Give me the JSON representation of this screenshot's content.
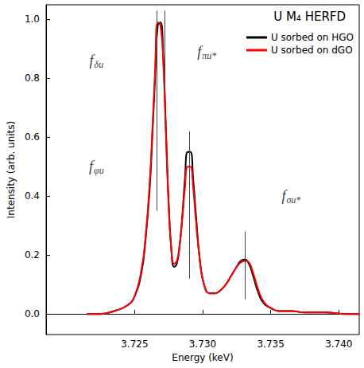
{
  "chart_data": {
    "type": "line",
    "title": "U M₄ HERFD",
    "x_label": "Energy (keV)",
    "y_label": "Intensity (arb. units)",
    "x": [
      3.7215,
      3.7225,
      3.7235,
      3.7245,
      3.725,
      3.7255,
      3.7258,
      3.7261,
      3.7263,
      3.7265,
      3.7267,
      3.7269,
      3.7271,
      3.7273,
      3.7275,
      3.7277,
      3.7279,
      3.7281,
      3.7283,
      3.7285,
      3.7287,
      3.7289,
      3.7291,
      3.7293,
      3.7295,
      3.7298,
      3.7301,
      3.7305,
      3.7309,
      3.7313,
      3.7317,
      3.7321,
      3.7325,
      3.7328,
      3.7331,
      3.7334,
      3.7337,
      3.7341,
      3.7345,
      3.735,
      3.7356,
      3.7365,
      3.7375,
      3.739,
      3.7405,
      3.7415
    ],
    "series": [
      {
        "name": "U sorbed on HGO",
        "color": "#000000",
        "values": [
          0,
          0,
          0.01,
          0.03,
          0.06,
          0.14,
          0.25,
          0.42,
          0.6,
          0.8,
          0.98,
          0.99,
          0.88,
          0.63,
          0.38,
          0.22,
          0.16,
          0.17,
          0.23,
          0.33,
          0.46,
          0.55,
          0.55,
          0.46,
          0.34,
          0.18,
          0.1,
          0.07,
          0.07,
          0.08,
          0.1,
          0.13,
          0.16,
          0.18,
          0.185,
          0.17,
          0.13,
          0.07,
          0.035,
          0.02,
          0.01,
          0.01,
          0.005,
          0.005,
          0,
          0
        ]
      },
      {
        "name": "U sorbed on dGO",
        "color": "#ff0000",
        "values": [
          0,
          0,
          0.01,
          0.03,
          0.06,
          0.15,
          0.26,
          0.44,
          0.62,
          0.82,
          0.99,
          0.98,
          0.86,
          0.61,
          0.37,
          0.22,
          0.17,
          0.18,
          0.23,
          0.32,
          0.43,
          0.5,
          0.5,
          0.43,
          0.32,
          0.18,
          0.1,
          0.07,
          0.07,
          0.08,
          0.1,
          0.13,
          0.16,
          0.175,
          0.18,
          0.175,
          0.14,
          0.08,
          0.04,
          0.02,
          0.01,
          0.01,
          0.005,
          0.005,
          0,
          0
        ]
      }
    ],
    "xlim": [
      3.7185,
      3.7415
    ],
    "xticks": [
      {
        "value": 3.725,
        "label": "3.725"
      },
      {
        "value": 3.73,
        "label": "3.730"
      },
      {
        "value": 3.735,
        "label": "3.735"
      },
      {
        "value": 3.74,
        "label": "3.740"
      }
    ],
    "ylim": [
      -0.07,
      1.05
    ],
    "yticks": [
      {
        "value": 0,
        "label": "0.0"
      },
      0.2,
      0.4,
      0.6,
      0.8,
      {
        "value": 1,
        "label": "1.0"
      }
    ],
    "grid": false,
    "legend": "upper right",
    "annotations": [
      {
        "text": "f",
        "sub": "δu",
        "x": 3.7222,
        "y": 0.86,
        "line_x": 3.7272,
        "line_y": [
          0.75,
          1.03
        ]
      },
      {
        "text": "f",
        "sub": "φu",
        "x": 3.7222,
        "y": 0.5,
        "line_x": 3.7266,
        "line_y": [
          0.35,
          1.03
        ]
      },
      {
        "text": "f",
        "sub": "πu*",
        "x": 3.7303,
        "y": 0.89,
        "line_x": 3.729,
        "line_y": [
          0.12,
          0.62
        ]
      },
      {
        "text": "f",
        "sub": "σu*",
        "x": 3.7365,
        "y": 0.4,
        "line_x": 3.7331,
        "line_y": [
          0.05,
          0.28
        ]
      }
    ]
  }
}
